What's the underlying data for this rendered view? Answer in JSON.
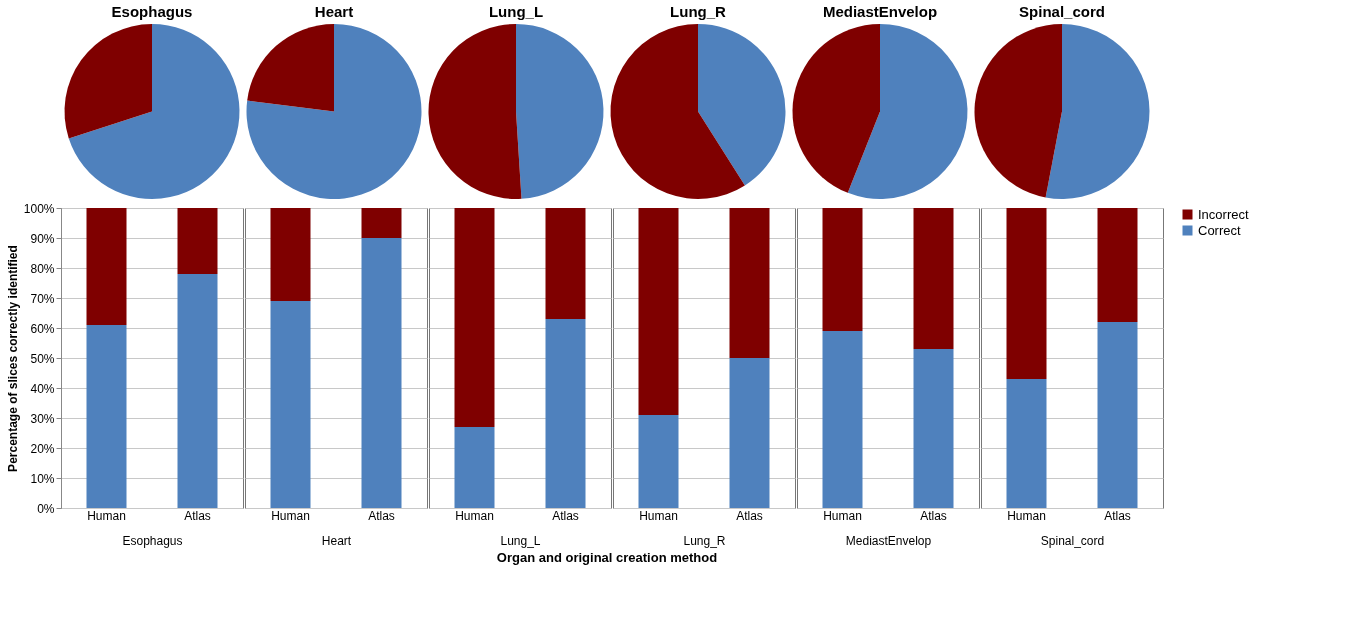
{
  "chart_data": [
    {
      "type": "pie",
      "title": "Esophagus",
      "values": [
        70,
        30
      ],
      "colors": [
        "#4f81bd",
        "#7f0000"
      ]
    },
    {
      "type": "pie",
      "title": "Heart",
      "values": [
        77,
        23
      ],
      "colors": [
        "#4f81bd",
        "#7f0000"
      ]
    },
    {
      "type": "pie",
      "title": "Lung_L",
      "values": [
        49,
        51
      ],
      "colors": [
        "#4f81bd",
        "#7f0000"
      ]
    },
    {
      "type": "pie",
      "title": "Lung_R",
      "values": [
        41,
        59
      ],
      "colors": [
        "#4f81bd",
        "#7f0000"
      ]
    },
    {
      "type": "pie",
      "title": "MediastEnvelop",
      "values": [
        56,
        44
      ],
      "colors": [
        "#4f81bd",
        "#7f0000"
      ]
    },
    {
      "type": "pie",
      "title": "Spinal_cord",
      "values": [
        53,
        47
      ],
      "colors": [
        "#4f81bd",
        "#7f0000"
      ]
    },
    {
      "type": "bar",
      "stacked": true,
      "categories": [
        "Human",
        "Atlas"
      ],
      "xlabel": "Esophagus",
      "ylabel": "Percentage of slices correctly identified",
      "annotations": [
        "Organ and original creation method"
      ],
      "grid": "y",
      "legend": false,
      "ylim": [
        0,
        100
      ],
      "yticks": [
        {
          "value": 0,
          "label": "0%"
        },
        {
          "value": 10,
          "label": "10%"
        },
        {
          "value": 20,
          "label": "20%"
        },
        {
          "value": 30,
          "label": "30%"
        },
        {
          "value": 40,
          "label": "40%"
        },
        {
          "value": 50,
          "label": "50%"
        },
        {
          "value": 60,
          "label": "60%"
        },
        {
          "value": 70,
          "label": "70%"
        },
        {
          "value": 80,
          "label": "80%"
        },
        {
          "value": 90,
          "label": "90%"
        },
        {
          "value": 100,
          "label": "100%"
        }
      ],
      "series": [
        {
          "color": "#4f81bd",
          "values": [
            61,
            78
          ]
        },
        {
          "color": "#7f0000",
          "values": [
            39,
            22
          ]
        }
      ]
    },
    {
      "type": "bar",
      "stacked": true,
      "categories": [
        "Human",
        "Atlas"
      ],
      "xlabel": "Heart",
      "grid": "y",
      "legend": false,
      "tick_labels": "x",
      "ylim": [
        0,
        100
      ],
      "yticks": [
        0,
        10,
        20,
        30,
        40,
        50,
        60,
        70,
        80,
        90,
        100
      ],
      "series": [
        {
          "color": "#4f81bd",
          "values": [
            69,
            90
          ]
        },
        {
          "color": "#7f0000",
          "values": [
            31,
            10
          ]
        }
      ]
    },
    {
      "type": "bar",
      "stacked": true,
      "categories": [
        "Human",
        "Atlas"
      ],
      "xlabel": "Lung_L",
      "grid": "y",
      "legend": false,
      "tick_labels": "x",
      "ylim": [
        0,
        100
      ],
      "yticks": [
        0,
        10,
        20,
        30,
        40,
        50,
        60,
        70,
        80,
        90,
        100
      ],
      "series": [
        {
          "color": "#4f81bd",
          "values": [
            27,
            63
          ]
        },
        {
          "color": "#7f0000",
          "values": [
            73,
            37
          ]
        }
      ]
    },
    {
      "type": "bar",
      "stacked": true,
      "categories": [
        "Human",
        "Atlas"
      ],
      "xlabel": "Lung_R",
      "grid": "y",
      "legend": false,
      "tick_labels": "x",
      "ylim": [
        0,
        100
      ],
      "yticks": [
        0,
        10,
        20,
        30,
        40,
        50,
        60,
        70,
        80,
        90,
        100
      ],
      "series": [
        {
          "color": "#4f81bd",
          "values": [
            31,
            50
          ]
        },
        {
          "color": "#7f0000",
          "values": [
            69,
            50
          ]
        }
      ]
    },
    {
      "type": "bar",
      "stacked": true,
      "categories": [
        "Human",
        "Atlas"
      ],
      "xlabel": "MediastEnvelop",
      "grid": "y",
      "legend": false,
      "tick_labels": "x",
      "ylim": [
        0,
        100
      ],
      "yticks": [
        0,
        10,
        20,
        30,
        40,
        50,
        60,
        70,
        80,
        90,
        100
      ],
      "series": [
        {
          "color": "#4f81bd",
          "values": [
            59,
            53
          ]
        },
        {
          "color": "#7f0000",
          "values": [
            41,
            47
          ]
        }
      ]
    },
    {
      "type": "bar",
      "stacked": true,
      "categories": [
        "Human",
        "Atlas"
      ],
      "xlabel": "Spinal_cord",
      "grid": "y",
      "legend": "right",
      "tick_labels": "x",
      "ylim": [
        0,
        100
      ],
      "yticks": [
        0,
        10,
        20,
        30,
        40,
        50,
        60,
        70,
        80,
        90,
        100
      ],
      "series": [
        {
          "name": "Correct",
          "color": "#4f81bd",
          "values": [
            43,
            62
          ]
        },
        {
          "name": "Incorrect",
          "color": "#7f0000",
          "values": [
            57,
            38
          ]
        }
      ]
    }
  ]
}
